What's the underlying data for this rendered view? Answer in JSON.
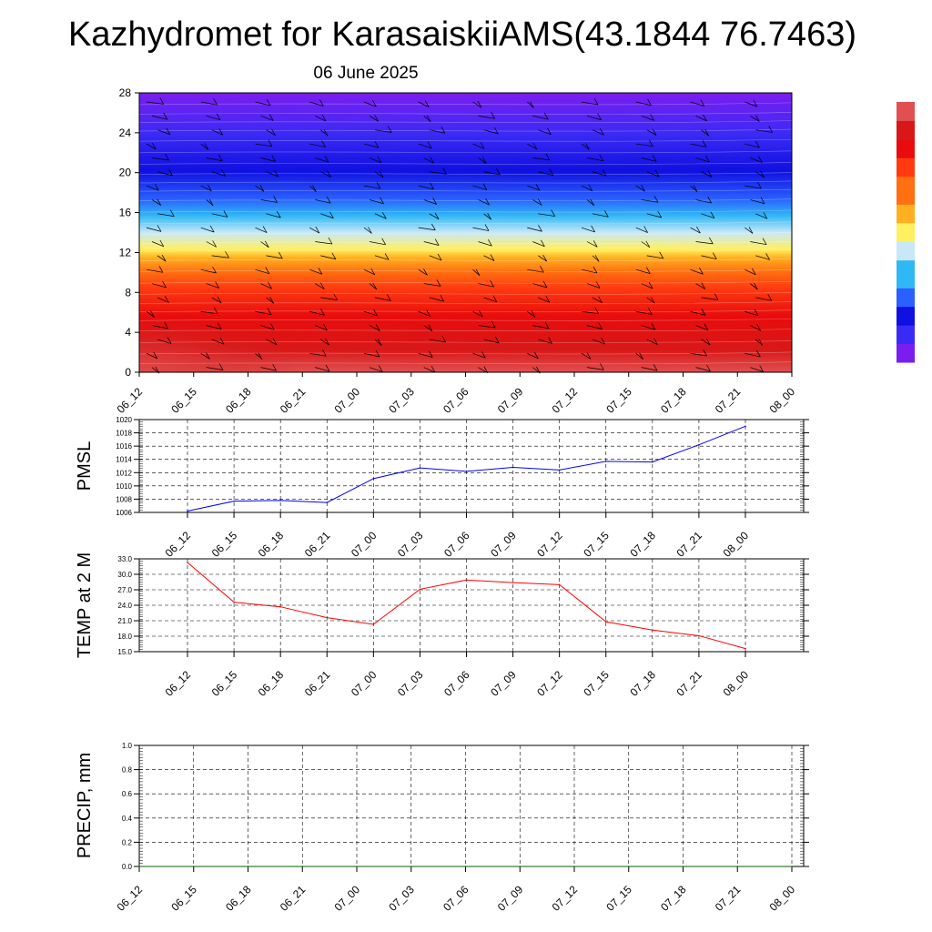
{
  "header": {
    "title": "Kazhydromet for KarasaiskiiAMS(43.1844 76.7463)",
    "subtitle": "06 June 2025"
  },
  "colors": {
    "pmsl_line": "#0000ff",
    "temp_line": "#ff0000",
    "precip_line": "#006400",
    "grid": "#000000"
  },
  "chart_data": [
    {
      "type": "heatmap",
      "name": "vertical-profile",
      "x_labels": [
        "06_12",
        "06_15",
        "06_18",
        "06_21",
        "07_00",
        "07_03",
        "07_06",
        "07_09",
        "07_12",
        "07_15",
        "07_18",
        "07_21",
        "08_00"
      ],
      "y_ticks": [
        0,
        4,
        8,
        12,
        16,
        20,
        24,
        28
      ],
      "ylim": [
        0,
        28
      ],
      "colorbar_stops": [
        "#7a1ef0",
        "#3a2af5",
        "#1010e0",
        "#2a60ff",
        "#30b8f5",
        "#c8e8f8",
        "#fff060",
        "#ffb020",
        "#ff7010",
        "#ff3a10",
        "#e80c0c",
        "#d81818",
        "#e05050"
      ],
      "legend": "right",
      "wind_barbs": true
    },
    {
      "type": "line",
      "name": "pmsl",
      "ylabel": "PMSL",
      "categories": [
        "06_12",
        "06_15",
        "06_18",
        "06_21",
        "07_00",
        "07_03",
        "07_06",
        "07_09",
        "07_12",
        "07_15",
        "07_18",
        "07_21",
        "08_00"
      ],
      "values": [
        1006.2,
        1007.7,
        1007.8,
        1007.5,
        1011.1,
        1012.7,
        1012.2,
        1012.8,
        1012.4,
        1013.7,
        1013.6,
        1016.2,
        1019.0
      ],
      "ylim": [
        1006,
        1020
      ],
      "yticks": [
        "1006",
        "1008",
        "1010",
        "1012",
        "1014",
        "1016",
        "1018",
        "1020"
      ],
      "grid": true
    },
    {
      "type": "line",
      "name": "temp",
      "ylabel": "TEMP at 2 M",
      "categories": [
        "06_12",
        "06_15",
        "06_18",
        "06_21",
        "07_00",
        "07_03",
        "07_06",
        "07_09",
        "07_12",
        "07_15",
        "07_18",
        "07_21",
        "08_00"
      ],
      "values": [
        32.3,
        24.6,
        23.7,
        21.6,
        20.3,
        27.1,
        28.9,
        28.4,
        28.0,
        20.8,
        19.2,
        18.1,
        15.6
      ],
      "ylim": [
        15,
        33
      ],
      "yticks": [
        "15.0",
        "18.0",
        "21.0",
        "24.0",
        "27.0",
        "30.0",
        "33.0"
      ],
      "grid": true
    },
    {
      "type": "line",
      "name": "precip",
      "ylabel": "PRECIP, mm",
      "categories": [
        "06_12",
        "06_15",
        "06_18",
        "06_21",
        "07_00",
        "07_03",
        "07_06",
        "07_09",
        "07_12",
        "07_15",
        "07_18",
        "07_21",
        "08_00"
      ],
      "values": [
        0,
        0,
        0,
        0,
        0,
        0,
        0,
        0,
        0,
        0,
        0,
        0,
        0
      ],
      "ylim": [
        0,
        1
      ],
      "yticks": [
        "0.0",
        "0.2",
        "0.4",
        "0.6",
        "0.8",
        "1.0"
      ],
      "grid": true
    }
  ]
}
